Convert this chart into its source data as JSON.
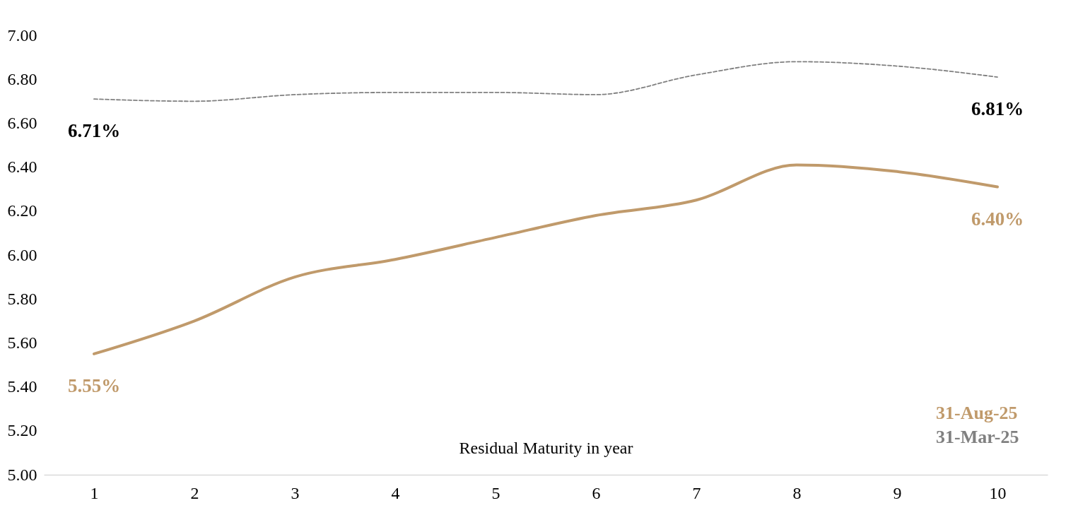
{
  "chart_data": {
    "type": "line",
    "xlabel": "Residual Maturity in year",
    "categories": [
      "1",
      "2",
      "3",
      "4",
      "5",
      "6",
      "7",
      "8",
      "9",
      "10"
    ],
    "series": [
      {
        "name": "31-Aug-25",
        "color": "#c09a6b",
        "line_style": "solid",
        "values": [
          5.55,
          5.7,
          5.9,
          5.98,
          6.08,
          6.18,
          6.25,
          6.41,
          6.38,
          6.31
        ],
        "value_labels": [
          "5.55%",
          null,
          null,
          null,
          null,
          null,
          null,
          null,
          null,
          null
        ]
      },
      {
        "name": "31-Mar-25",
        "color": "#808080",
        "line_style": "dashed",
        "values": [
          6.71,
          6.7,
          6.73,
          6.74,
          6.74,
          6.73,
          6.82,
          6.88,
          6.86,
          6.81
        ],
        "value_labels": [
          "6.71%",
          null,
          null,
          null,
          null,
          null,
          null,
          null,
          null,
          "6.81%"
        ]
      }
    ],
    "ylim": [
      5.0,
      7.0
    ],
    "yticks": [
      {
        "value": 5.0,
        "label": "5.00"
      },
      {
        "value": 5.2,
        "label": "5.20"
      },
      {
        "value": 5.4,
        "label": "5.40"
      },
      {
        "value": 5.6,
        "label": "5.60"
      },
      {
        "value": 5.8,
        "label": "5.80"
      },
      {
        "value": 6.0,
        "label": "6.00"
      },
      {
        "value": 6.2,
        "label": "6.20"
      },
      {
        "value": 6.4,
        "label": "6.40"
      },
      {
        "value": 6.6,
        "label": "6.60"
      },
      {
        "value": 6.8,
        "label": "6.80"
      },
      {
        "value": 7.0,
        "label": "7.00"
      }
    ],
    "annotations": [
      "6.40%"
    ],
    "grid": false,
    "legend": "bottom right",
    "marker": "none"
  }
}
